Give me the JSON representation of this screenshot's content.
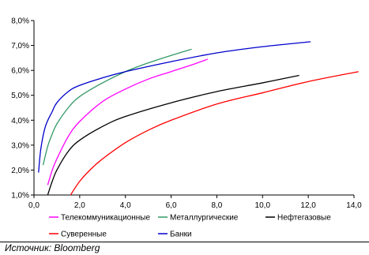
{
  "source_text": "Источник: Bloomberg",
  "chart_data": {
    "type": "line",
    "xlim": [
      0,
      14.0
    ],
    "ylim": [
      1.0,
      8.0
    ],
    "x_ticks": [
      "0,0",
      "2,0",
      "4,0",
      "6,0",
      "8,0",
      "10,0",
      "12,0",
      "14,0"
    ],
    "y_ticks": [
      "1,0%",
      "2,0%",
      "3,0%",
      "4,0%",
      "5,0%",
      "6,0%",
      "7,0%",
      "8,0%"
    ],
    "grid": false,
    "legend_position": "bottom",
    "series": [
      {
        "name": "Телекоммуникационные",
        "color": "#ff00ff",
        "x": [
          0.6,
          0.8,
          1.0,
          1.5,
          2.0,
          3.0,
          4.0,
          5.0,
          6.0,
          7.0,
          7.6
        ],
        "y": [
          1.4,
          2.0,
          2.45,
          3.35,
          3.95,
          4.75,
          5.25,
          5.65,
          5.95,
          6.25,
          6.45
        ]
      },
      {
        "name": "Металлургические",
        "color": "#339966",
        "x": [
          0.4,
          0.6,
          0.8,
          1.0,
          1.5,
          2.0,
          3.0,
          4.0,
          5.0,
          6.0,
          6.9
        ],
        "y": [
          2.2,
          2.95,
          3.45,
          3.85,
          4.5,
          4.95,
          5.5,
          5.95,
          6.3,
          6.6,
          6.85
        ]
      },
      {
        "name": "Нефтегазовые",
        "color": "#000000",
        "x": [
          0.6,
          0.8,
          1.0,
          1.5,
          2.0,
          3.0,
          4.0,
          6.0,
          8.0,
          10.0,
          11.6
        ],
        "y": [
          1.0,
          1.55,
          2.0,
          2.75,
          3.2,
          3.75,
          4.15,
          4.7,
          5.15,
          5.5,
          5.8
        ]
      },
      {
        "name": "Суверенные",
        "color": "#ff0000",
        "x": [
          1.6,
          2.0,
          2.5,
          3.0,
          4.0,
          5.0,
          6.0,
          8.0,
          10.0,
          12.0,
          14.2
        ],
        "y": [
          1.0,
          1.55,
          2.05,
          2.45,
          3.1,
          3.6,
          4.0,
          4.65,
          5.1,
          5.55,
          5.95
        ]
      },
      {
        "name": "Банки",
        "color": "#0000cc",
        "x": [
          0.2,
          0.3,
          0.5,
          0.8,
          1.0,
          1.5,
          2.0,
          3.0,
          4.0,
          6.0,
          8.0,
          10.0,
          12.1
        ],
        "y": [
          1.9,
          2.85,
          3.75,
          4.35,
          4.7,
          5.15,
          5.4,
          5.7,
          5.95,
          6.35,
          6.7,
          6.95,
          7.15
        ]
      }
    ]
  }
}
